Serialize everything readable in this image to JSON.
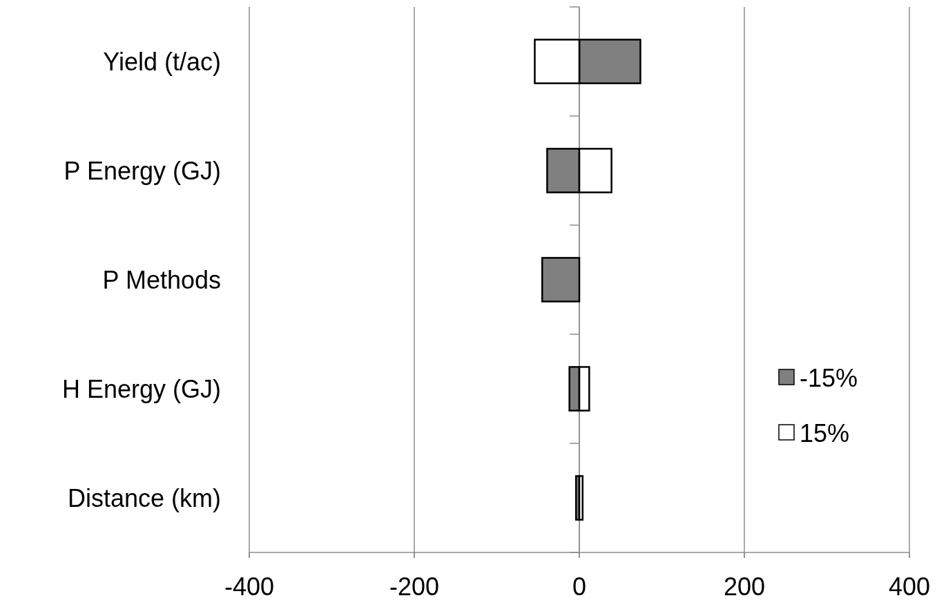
{
  "chart_data": {
    "type": "bar",
    "orientation": "horizontal",
    "categories": [
      "Yield (t/ac)",
      "P Energy (GJ)",
      "P Methods",
      "H Energy (GJ)",
      "Distance (km)"
    ],
    "series": [
      {
        "name": "-15%",
        "color": "#808080",
        "values": [
          74,
          -39,
          -45,
          -12,
          -4
        ]
      },
      {
        "name": "15%",
        "color": "#ffffff",
        "values": [
          -54,
          39,
          0,
          12,
          4
        ]
      }
    ],
    "xlim": [
      -400,
      400
    ],
    "xticks": [
      -400,
      -200,
      0,
      200,
      400
    ],
    "grid": "x",
    "legend": "right",
    "stacked": true
  }
}
